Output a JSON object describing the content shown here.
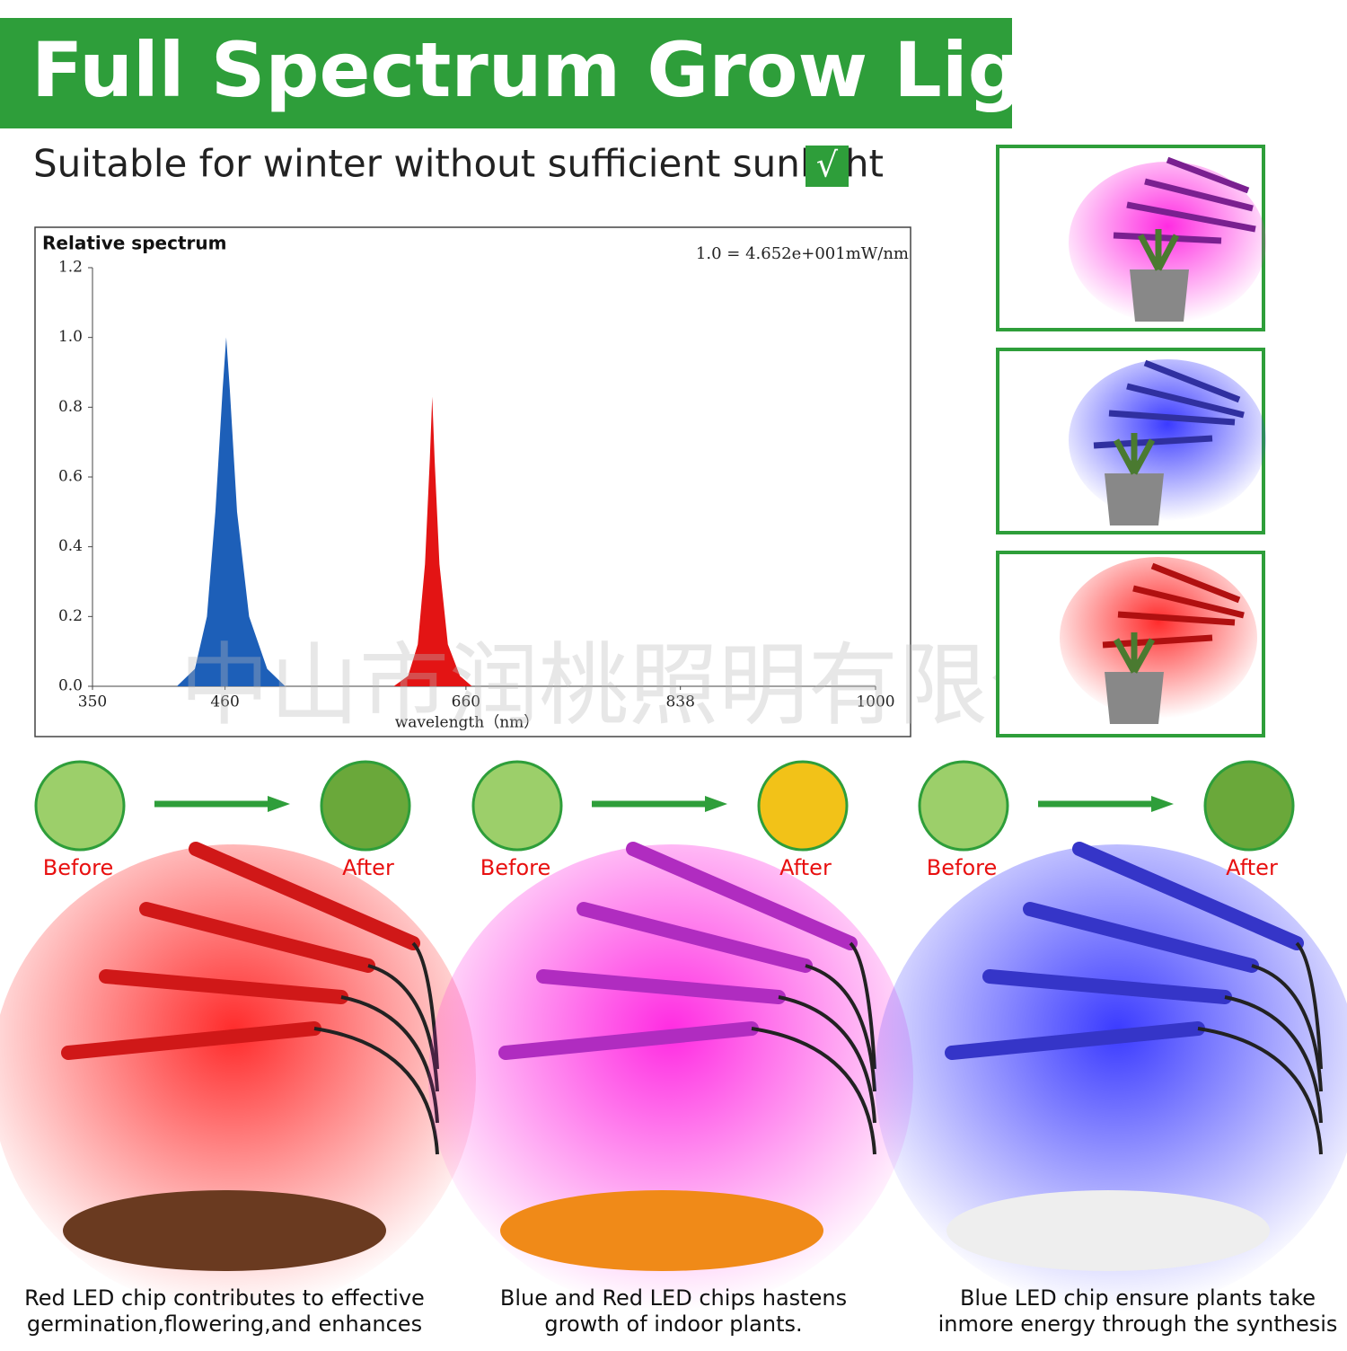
{
  "header": {
    "title": "Full Spectrum Grow Light",
    "subtitle": "Suitable for winter without sufficient sunlight",
    "check": "√"
  },
  "chart_data": {
    "type": "area",
    "title": "Relative spectrum",
    "annotation": "1.0 = 4.652e+001mW/nm",
    "x_label": "wavelength（nm）",
    "xlim": [
      350,
      1000
    ],
    "xticks": [
      350,
      460,
      660,
      838,
      1000
    ],
    "ylim": [
      0,
      1.2
    ],
    "yticks": [
      {
        "value": 0,
        "label": "0.0"
      },
      0.2,
      0.4,
      0.6,
      0.8,
      {
        "value": 1,
        "label": "1.0"
      },
      1.2
    ],
    "series": [
      {
        "name": "Blue",
        "color": "#1d5fb8",
        "x": [
          420,
          435,
          445,
          452,
          458,
          461,
          464,
          470,
          480,
          495,
          510
        ],
        "values": [
          0,
          0.05,
          0.2,
          0.5,
          0.85,
          1.0,
          0.85,
          0.5,
          0.2,
          0.05,
          0
        ]
      },
      {
        "name": "Red",
        "color": "#e31414",
        "x": [
          600,
          612,
          620,
          626,
          630,
          632,
          634,
          638,
          645,
          655,
          665
        ],
        "values": [
          0,
          0.03,
          0.12,
          0.35,
          0.65,
          0.83,
          0.65,
          0.35,
          0.12,
          0.03,
          0
        ]
      }
    ]
  },
  "watermark": "中山市润桃照明有限公司",
  "panels": [
    {
      "before": "Before",
      "after": "After",
      "caption": [
        "Red LED chip contributes to effective",
        "germination,flowering,and enhances"
      ]
    },
    {
      "before": "Before",
      "after": "After",
      "caption": [
        "Blue and Red LED chips hastens",
        "growth of indoor plants."
      ]
    },
    {
      "before": "Before",
      "after": "After",
      "caption": [
        "Blue LED chip ensure plants take",
        "inmore energy through the synthesis"
      ]
    }
  ]
}
